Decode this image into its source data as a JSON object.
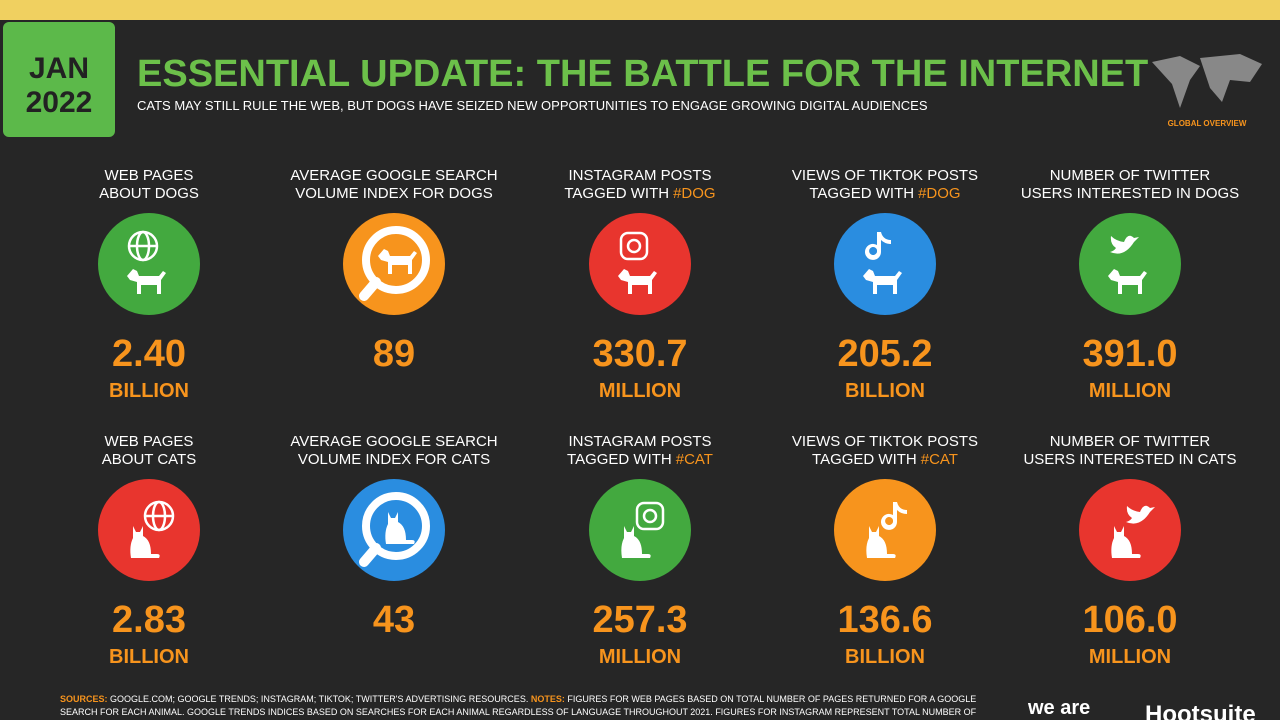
{
  "header": {
    "month": "JAN",
    "year": "2022",
    "title": "ESSENTIAL UPDATE: THE BATTLE FOR THE INTERNET",
    "subtitle": "CATS MAY STILL RULE THE WEB, BUT DOGS HAVE SEIZED NEW OPPORTUNITIES TO ENGAGE GROWING DIGITAL AUDIENCES",
    "region": "GLOBAL OVERVIEW"
  },
  "rows": [
    {
      "tiles": [
        {
          "label": [
            "WEB PAGES",
            "ABOUT DOGS"
          ],
          "color": "#43a93f",
          "value": "2.40",
          "unit": "BILLION"
        },
        {
          "label": [
            "AVERAGE GOOGLE SEARCH",
            "VOLUME INDEX FOR DOGS"
          ],
          "color": "#f7941d",
          "value": "89"
        },
        {
          "label": [
            "INSTAGRAM POSTS",
            "TAGGED WITH"
          ],
          "hashtag": "#DOG",
          "color": "#e8352e",
          "value": "330.7",
          "unit": "MILLION"
        },
        {
          "label": [
            "VIEWS OF TIKTOK POSTS",
            "TAGGED WITH"
          ],
          "hashtag": "#DOG",
          "color": "#2a8de0",
          "value": "205.2",
          "unit": "BILLION"
        },
        {
          "label": [
            "NUMBER OF TWITTER",
            "USERS INTERESTED IN DOGS"
          ],
          "color": "#43a93f",
          "value": "391.0",
          "unit": "MILLION"
        }
      ]
    },
    {
      "tiles": [
        {
          "label": [
            "WEB PAGES",
            "ABOUT CATS"
          ],
          "color": "#e8352e",
          "value": "2.83",
          "unit": "BILLION"
        },
        {
          "label": [
            "AVERAGE GOOGLE SEARCH",
            "VOLUME INDEX FOR CATS"
          ],
          "color": "#2a8de0",
          "value": "43"
        },
        {
          "label": [
            "INSTAGRAM POSTS",
            "TAGGED WITH"
          ],
          "hashtag": "#CAT",
          "color": "#43a93f",
          "value": "257.3",
          "unit": "MILLION"
        },
        {
          "label": [
            "VIEWS OF TIKTOK POSTS",
            "TAGGED WITH"
          ],
          "hashtag": "#CAT",
          "color": "#f7941d",
          "value": "136.6",
          "unit": "BILLION"
        },
        {
          "label": [
            "NUMBER OF TWITTER",
            "USERS INTERESTED IN CATS"
          ],
          "color": "#e8352e",
          "value": "106.0",
          "unit": "MILLION"
        }
      ]
    }
  ],
  "footer": {
    "sources_label": "SOURCES:",
    "sources": "GOOGLE.COM; GOOGLE TRENDS; INSTAGRAM; TIKTOK; TWITTER'S ADVERTISING RESOURCES.",
    "notes_label": "NOTES:",
    "notes": "FIGURES FOR WEB PAGES BASED ON TOTAL NUMBER OF PAGES RETURNED FOR A GOOGLE",
    "notes_2": "SEARCH FOR EACH ANIMAL. GOOGLE TRENDS INDICES BASED ON SEARCHES FOR EACH ANIMAL REGARDLESS OF LANGUAGE THROUGHOUT 2021. FIGURES FOR INSTAGRAM REPRESENT TOTAL NUMBER OF",
    "logo_1": "we are",
    "logo_2": "Hootsuite"
  }
}
